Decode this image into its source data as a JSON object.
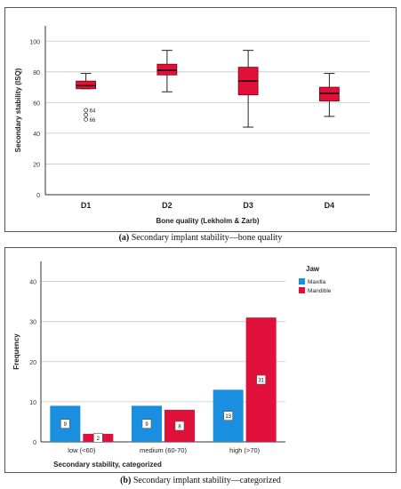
{
  "chart_data": [
    {
      "type": "box",
      "xlabel": "Bone quality (Lekholm & Zarb)",
      "ylabel": "Secondary stability (ISQ)",
      "ylim": [
        0,
        110
      ],
      "yticks": [
        0,
        20,
        40,
        60,
        80,
        100
      ],
      "grid": true,
      "categories": [
        "D1",
        "D2",
        "D3",
        "D4"
      ],
      "boxes": [
        {
          "category": "D1",
          "min": 69,
          "q1": 69,
          "median": 71,
          "q3": 74,
          "max": 79
        },
        {
          "category": "D2",
          "min": 67,
          "q1": 78,
          "median": 81,
          "q3": 85,
          "max": 94
        },
        {
          "category": "D3",
          "min": 44,
          "q1": 65,
          "median": 74,
          "q3": 83,
          "max": 94
        },
        {
          "category": "D4",
          "min": 51,
          "q1": 61,
          "median": 66,
          "q3": 70,
          "max": 79
        }
      ],
      "outliers": [
        {
          "category": "D1",
          "value": 55,
          "label": "64"
        },
        {
          "category": "D1",
          "value": 52,
          "label": ""
        },
        {
          "category": "D1",
          "value": 49,
          "label": "66"
        }
      ],
      "colors": {
        "box": "#e0103a",
        "border": "#7a0010"
      }
    },
    {
      "type": "bar",
      "xlabel": "Secondary stability, categorized",
      "ylabel": "Frequency",
      "ylim": [
        0,
        45
      ],
      "yticks": [
        0,
        10,
        20,
        30,
        40
      ],
      "grid": true,
      "legend_title": "Jaw",
      "legend_position": "top-right",
      "categories": [
        "low (<60)",
        "medium (60-70)",
        "high (>70)"
      ],
      "series": [
        {
          "name": "Maxilla",
          "values": [
            9,
            9,
            13
          ],
          "color": "#1a8fe0"
        },
        {
          "name": "Mandible",
          "values": [
            2,
            8,
            31
          ],
          "color": "#e0103a"
        }
      ]
    }
  ],
  "captions": {
    "a_label": "(a)",
    "a_text": " Secondary implant stability—bone quality",
    "b_label": "(b)",
    "b_text": " Secondary implant stability—categorized"
  }
}
